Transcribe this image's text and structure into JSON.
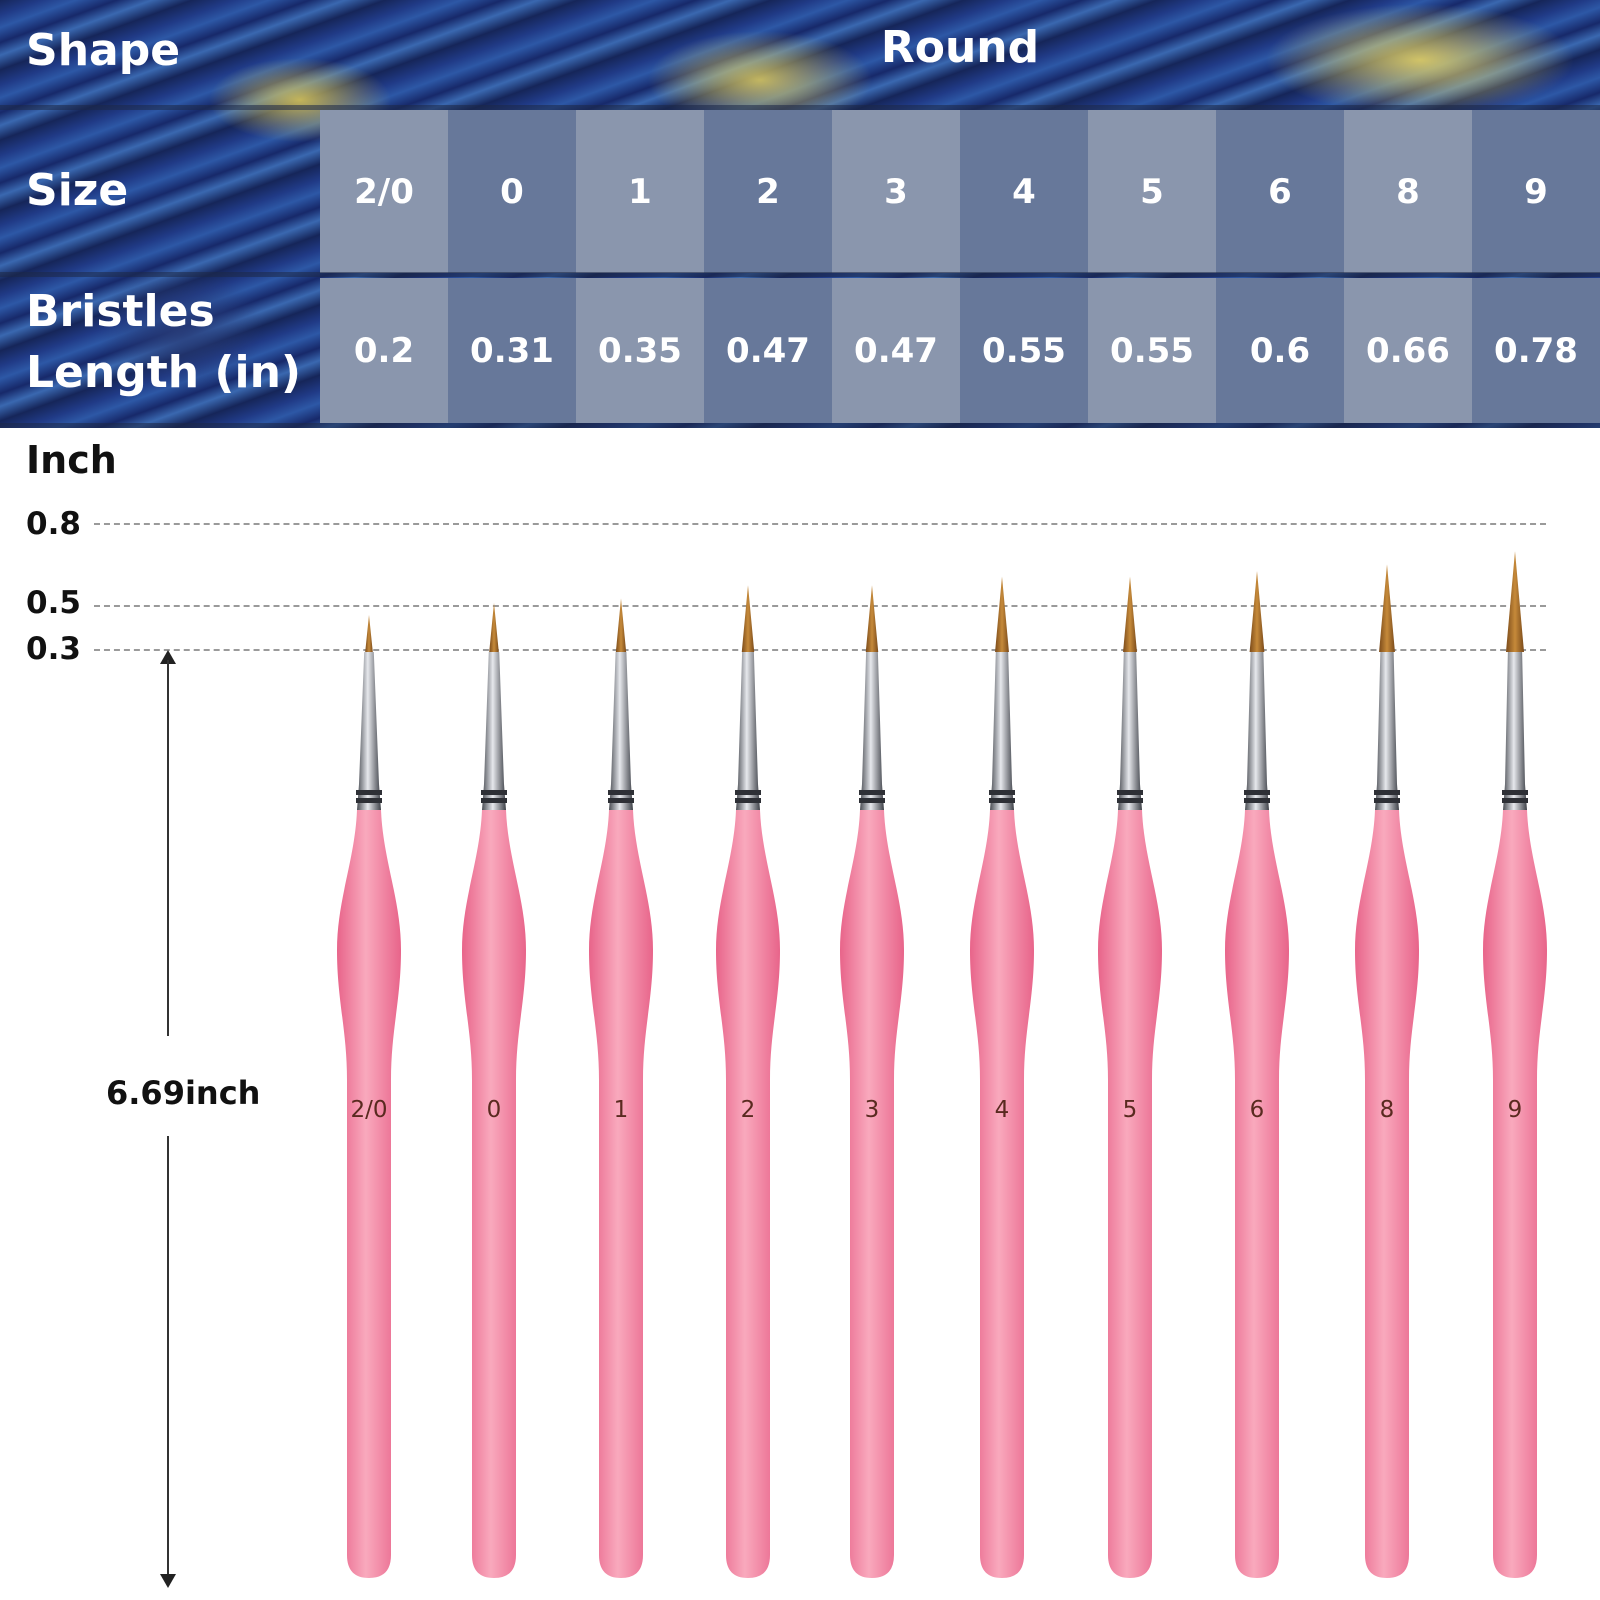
{
  "table": {
    "shape_label": "Shape",
    "shape_value": "Round",
    "size_label": "Size",
    "length_label_line1": "Bristles",
    "length_label_line2": "Length (in)",
    "sizes": [
      "2/0",
      "0",
      "1",
      "2",
      "3",
      "4",
      "5",
      "6",
      "8",
      "9"
    ],
    "lengths": [
      "0.2",
      "0.31",
      "0.35",
      "0.47",
      "0.47",
      "0.55",
      "0.55",
      "0.6",
      "0.66",
      "0.78"
    ]
  },
  "scale": {
    "unit_label": "Inch",
    "ticks": [
      "0.8",
      "0.5",
      "0.3"
    ],
    "handle_length_label": "6.69inch"
  },
  "brushes": [
    {
      "number": "2/0",
      "bristle_length": 0.2
    },
    {
      "number": "0",
      "bristle_length": 0.31
    },
    {
      "number": "1",
      "bristle_length": 0.35
    },
    {
      "number": "2",
      "bristle_length": 0.47
    },
    {
      "number": "3",
      "bristle_length": 0.47
    },
    {
      "number": "4",
      "bristle_length": 0.55
    },
    {
      "number": "5",
      "bristle_length": 0.55
    },
    {
      "number": "6",
      "bristle_length": 0.6
    },
    {
      "number": "8",
      "bristle_length": 0.66
    },
    {
      "number": "9",
      "bristle_length": 0.78
    }
  ],
  "colors": {
    "handle": "#f27a9a",
    "handle_highlight": "#f9a9bd",
    "ferrule": "#b9bcc2",
    "bristle": "#a5692a",
    "cell_light": "#8a96ad",
    "cell_dark": "#67789a"
  }
}
